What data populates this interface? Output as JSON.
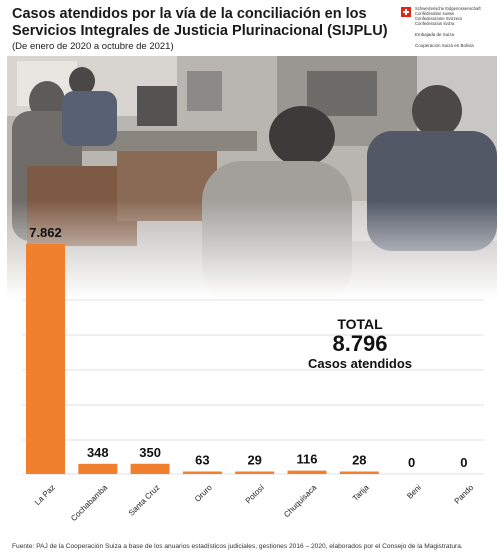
{
  "header": {
    "title": "Casos atendidos por la vía de la conciliación en los Servicios Integrales de Justicia Plurinacional (SIJPLU)",
    "subtitle": "(De enero de 2020 a octubre de 2021)"
  },
  "logo": {
    "confed_lines": [
      "Schweizerische Eidgenossenschaft",
      "Confédération suisse",
      "Confederazione Svizzera",
      "Confederaziun svizra"
    ],
    "embajada": "Embajada de Suiza",
    "cooperacion": "Cooperación Suiza en Bolivia"
  },
  "total": {
    "label": "TOTAL",
    "value": "8.796",
    "caption": "Casos atendidos"
  },
  "footer": {
    "source": "Fuente: PAJ de la Cooperación Suiza a base de los anuarios estadísticos judiciales, gestiones 2016 – 2020, elaborados por el Consejo de la Magistratura."
  },
  "colors": {
    "bar": "#f07f2e",
    "text": "#111111",
    "grid": "#d9d9d9"
  },
  "chart_data": {
    "type": "bar",
    "categories": [
      "La Paz",
      "Cochabamba",
      "Santa Cruz",
      "Oruro",
      "Potosí",
      "Chuquisaca",
      "Tarija",
      "Beni",
      "Pando"
    ],
    "values": [
      7862,
      348,
      350,
      63,
      29,
      116,
      28,
      0,
      0
    ],
    "labels": [
      "7.862",
      "348",
      "350",
      "63",
      "29",
      "116",
      "28",
      "0",
      "0"
    ],
    "ylim": [
      0,
      7862
    ],
    "grid": true
  }
}
